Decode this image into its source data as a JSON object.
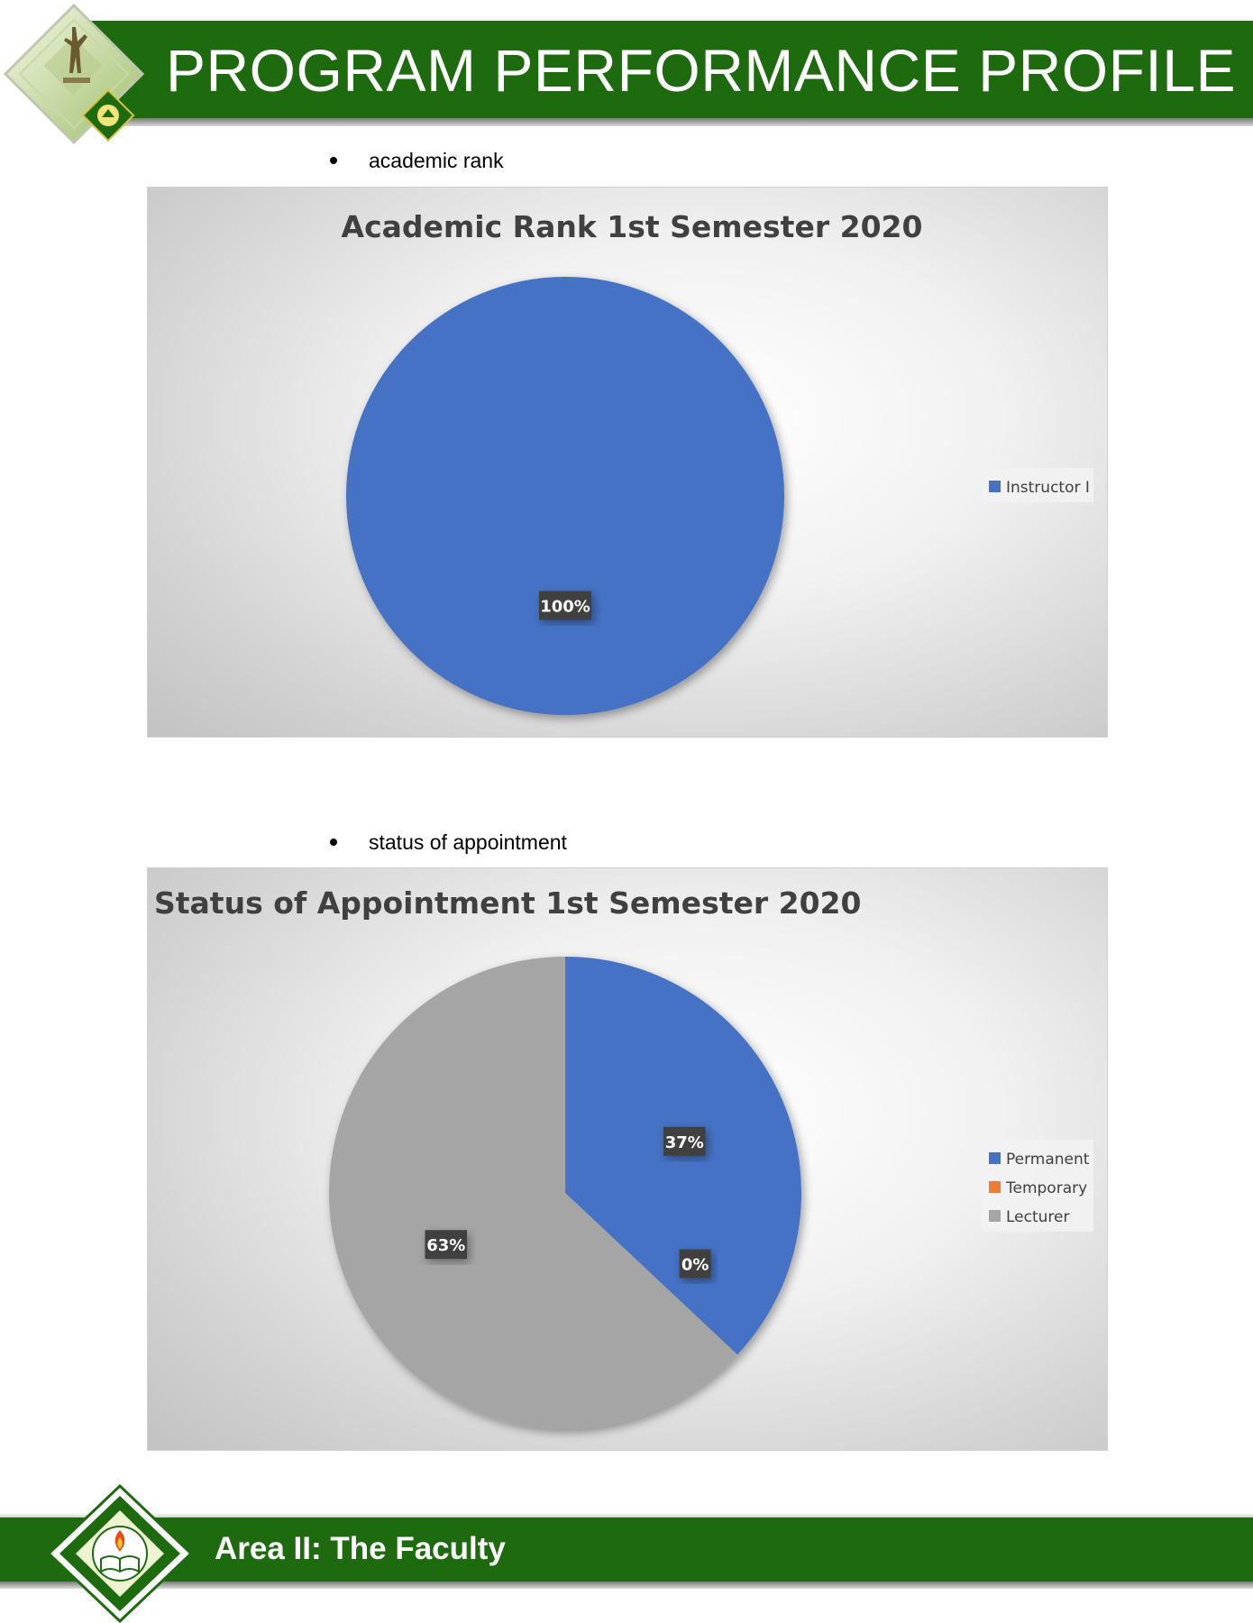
{
  "header": {
    "title": "PROGRAM PERFORMANCE PROFILE"
  },
  "sections": [
    {
      "bullet": "academic rank"
    },
    {
      "bullet": "status of appointment"
    }
  ],
  "colors": {
    "brand_green": "#1e6b0f",
    "series_blue": "#4472c4",
    "series_orange": "#ed7d31",
    "series_gray": "#a5a5a5",
    "label_box": "#404040"
  },
  "chart_data": [
    {
      "type": "pie",
      "title": "Academic Rank 1st Semester 2020",
      "categories": [
        "Instructor I"
      ],
      "values": [
        100
      ],
      "data_labels": [
        "100%"
      ],
      "colors": [
        "#4472c4"
      ],
      "legend_position": "right"
    },
    {
      "type": "pie",
      "title": "Status of Appointment 1st Semester 2020",
      "categories": [
        "Permanent",
        "Temporary",
        "Lecturer"
      ],
      "values": [
        37,
        0,
        63
      ],
      "data_labels": [
        "37%",
        "0%",
        "63%"
      ],
      "colors": [
        "#4472c4",
        "#ed7d31",
        "#a5a5a5"
      ],
      "legend_position": "right"
    }
  ],
  "footer": {
    "title": "Area II: The Faculty"
  }
}
